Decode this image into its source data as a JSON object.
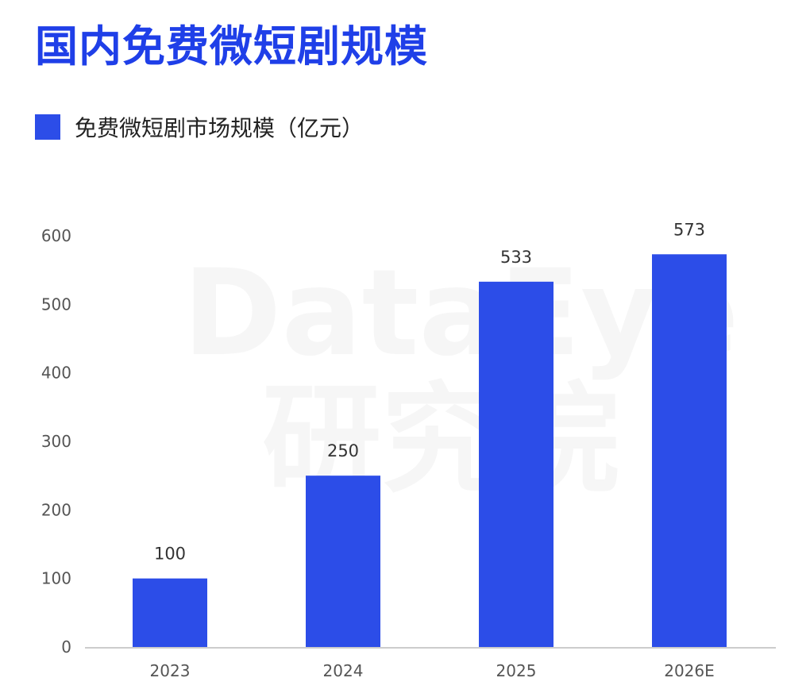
{
  "title": "国内免费微短剧规模",
  "watermark": {
    "text_en": "DataEye",
    "text_cn": "研究院"
  },
  "colors": {
    "title": "#1f3fe8",
    "bar": "#2c4de8",
    "axis_text": "#555555",
    "label_text": "#333333",
    "axis_line": "#cccccc"
  },
  "chart_data": {
    "type": "bar",
    "categories": [
      "2023",
      "2024",
      "2025",
      "2026E"
    ],
    "series": [
      {
        "name": "免费微短剧市场规模（亿元）",
        "values": [
          100,
          250,
          533,
          573
        ]
      }
    ],
    "data_labels": [
      "100",
      "250",
      "533",
      "573"
    ],
    "ylim": [
      0,
      600
    ],
    "yticks": [
      "0",
      "100",
      "200",
      "300",
      "400",
      "500",
      "600"
    ],
    "grid": false,
    "legend_position": "top-left"
  }
}
